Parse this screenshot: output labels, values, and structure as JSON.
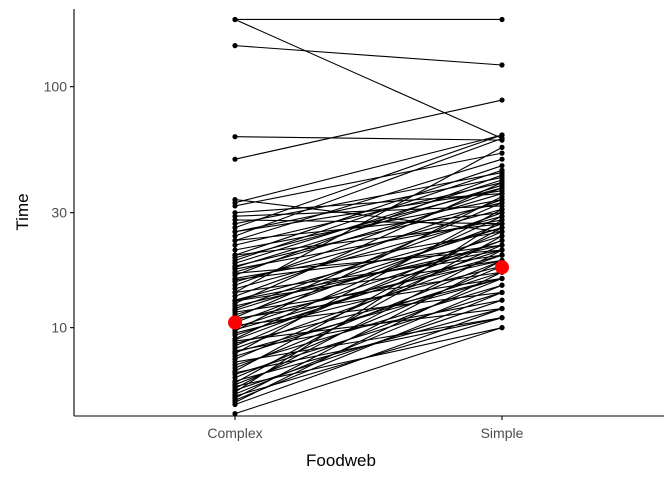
{
  "chart_data": {
    "type": "slope",
    "title": "",
    "xlabel": "Foodweb",
    "ylabel": "Time",
    "categories": [
      "Complex",
      "Simple"
    ],
    "y_scale": "log10",
    "ylim": [
      4.3,
      210
    ],
    "y_ticks": [
      10,
      30,
      100
    ],
    "y_tick_labels": [
      "10",
      "30",
      "100"
    ],
    "grid": false,
    "legend": "none",
    "colors": {
      "lines": "#000000",
      "points": "#000000",
      "mean": "#ff0000"
    },
    "mean_points": [
      {
        "category": "Complex",
        "value": 10.5
      },
      {
        "category": "Simple",
        "value": 17.8
      }
    ],
    "pairs": [
      [
        190,
        190
      ],
      [
        148,
        123
      ],
      [
        190,
        61
      ],
      [
        62,
        60
      ],
      [
        50,
        88
      ],
      [
        34,
        25
      ],
      [
        33,
        63
      ],
      [
        32,
        53
      ],
      [
        30,
        36
      ],
      [
        29,
        32
      ],
      [
        28,
        27
      ],
      [
        27,
        44
      ],
      [
        26,
        63
      ],
      [
        25,
        42
      ],
      [
        24,
        61
      ],
      [
        23,
        50
      ],
      [
        22,
        40
      ],
      [
        21,
        34
      ],
      [
        20,
        27
      ],
      [
        19.5,
        38
      ],
      [
        19,
        45
      ],
      [
        18.5,
        41
      ],
      [
        18,
        33
      ],
      [
        17.5,
        28
      ],
      [
        17,
        36
      ],
      [
        16.5,
        43
      ],
      [
        16,
        25
      ],
      [
        15.5,
        31
      ],
      [
        15,
        38
      ],
      [
        14.5,
        29
      ],
      [
        14,
        20
      ],
      [
        13.5,
        34
      ],
      [
        13,
        26
      ],
      [
        12.6,
        40
      ],
      [
        12.3,
        22
      ],
      [
        12,
        30
      ],
      [
        11.6,
        17
      ],
      [
        11.3,
        24
      ],
      [
        11,
        33
      ],
      [
        10.8,
        19
      ],
      [
        10.5,
        27
      ],
      [
        10.2,
        14
      ],
      [
        10,
        23
      ],
      [
        9.7,
        35
      ],
      [
        9.5,
        18
      ],
      [
        9.3,
        21
      ],
      [
        9,
        29
      ],
      [
        8.8,
        12
      ],
      [
        8.6,
        16
      ],
      [
        8.4,
        25
      ],
      [
        8.2,
        20
      ],
      [
        8,
        13
      ],
      [
        7.8,
        31
      ],
      [
        7.6,
        17
      ],
      [
        7.4,
        22
      ],
      [
        7.2,
        11
      ],
      [
        7,
        15
      ],
      [
        6.8,
        19
      ],
      [
        6.6,
        26
      ],
      [
        6.4,
        14
      ],
      [
        6.2,
        18
      ],
      [
        6,
        12
      ],
      [
        5.9,
        24
      ],
      [
        5.8,
        16
      ],
      [
        5.7,
        10
      ],
      [
        5.6,
        21
      ],
      [
        5.5,
        13
      ],
      [
        5.4,
        28
      ],
      [
        5.3,
        15
      ],
      [
        5.2,
        11
      ],
      [
        5.1,
        19
      ],
      [
        5.0,
        14
      ],
      [
        4.9,
        17
      ],
      [
        4.8,
        12
      ],
      [
        4.4,
        10
      ],
      [
        14,
        56
      ],
      [
        20,
        47
      ],
      [
        23,
        30
      ],
      [
        25,
        37
      ],
      [
        13,
        21
      ],
      [
        9.8,
        20
      ],
      [
        11.8,
        26
      ],
      [
        7.9,
        16
      ],
      [
        6.5,
        11
      ],
      [
        8.9,
        23
      ],
      [
        16.8,
        21
      ],
      [
        12.9,
        19
      ],
      [
        10.9,
        16
      ],
      [
        17.8,
        39
      ],
      [
        15.8,
        22
      ]
    ]
  }
}
